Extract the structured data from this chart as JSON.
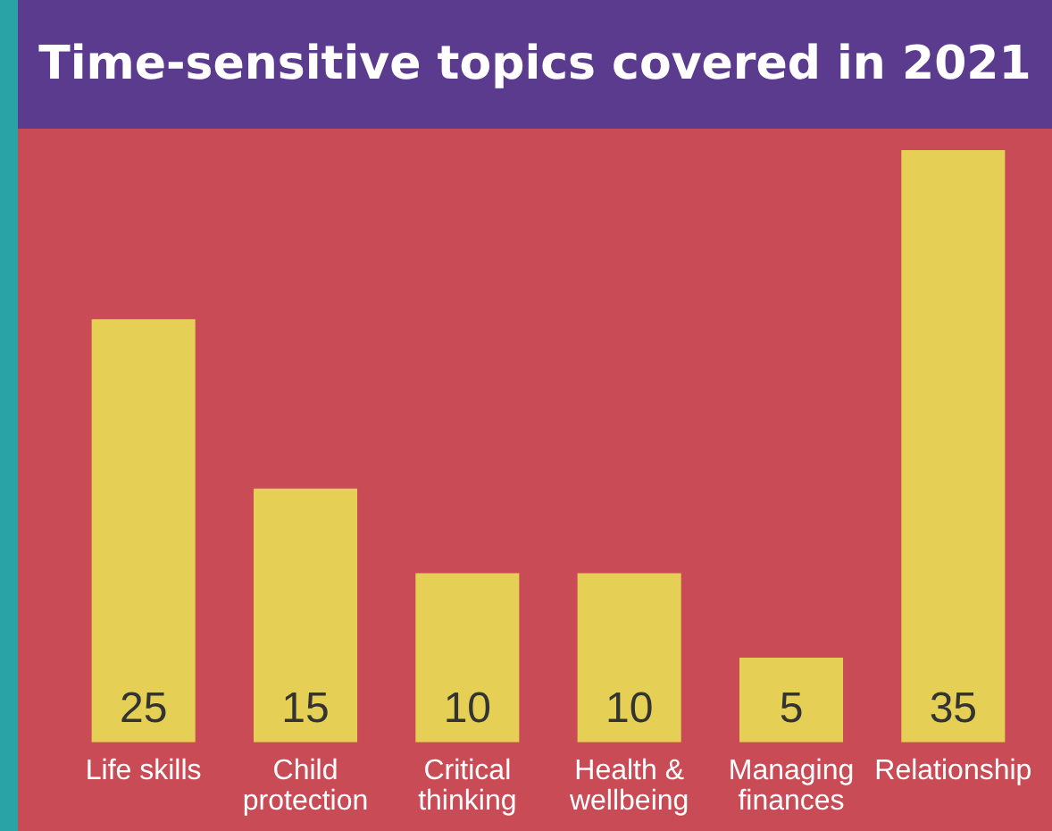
{
  "chart_data": {
    "type": "bar",
    "title": "Time-sensitive topics covered in 2021",
    "categories": [
      "Life skills",
      "Child\nprotection",
      "Critical\nthinking",
      "Health &\nwellbeing",
      "Managing\nfinances",
      "Relationship"
    ],
    "values": [
      25,
      15,
      10,
      10,
      5,
      35
    ],
    "color": "#e5cf55",
    "relative": false,
    "data_labels": true,
    "legend": false,
    "grid": false
  }
}
